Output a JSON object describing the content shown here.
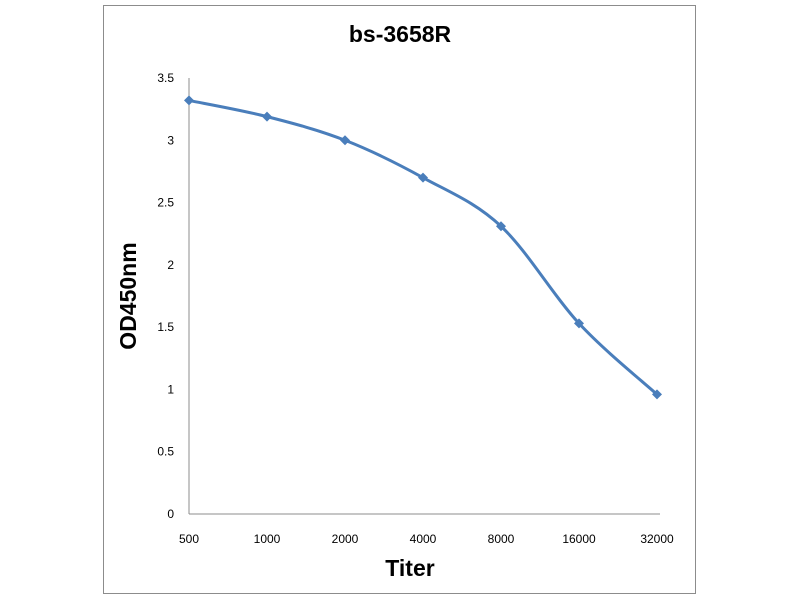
{
  "chart_data": {
    "type": "line",
    "title": "bs-3658R",
    "xlabel": "Titer",
    "ylabel": "OD450nm",
    "categories": [
      "500",
      "1000",
      "2000",
      "4000",
      "8000",
      "16000",
      "32000"
    ],
    "series": [
      {
        "values": [
          3.32,
          3.19,
          3.0,
          2.7,
          2.31,
          1.53,
          0.96
        ]
      }
    ],
    "ylim": [
      0,
      3.5
    ],
    "yticks": [
      "0",
      "0.5",
      "1",
      "1.5",
      "2",
      "2.5",
      "3",
      "3.5"
    ],
    "grid": false,
    "legend": "none",
    "colors": {
      "series": "#4a7ebb",
      "axis": "#8c8c8c",
      "frame": "#8c8c8c"
    }
  }
}
